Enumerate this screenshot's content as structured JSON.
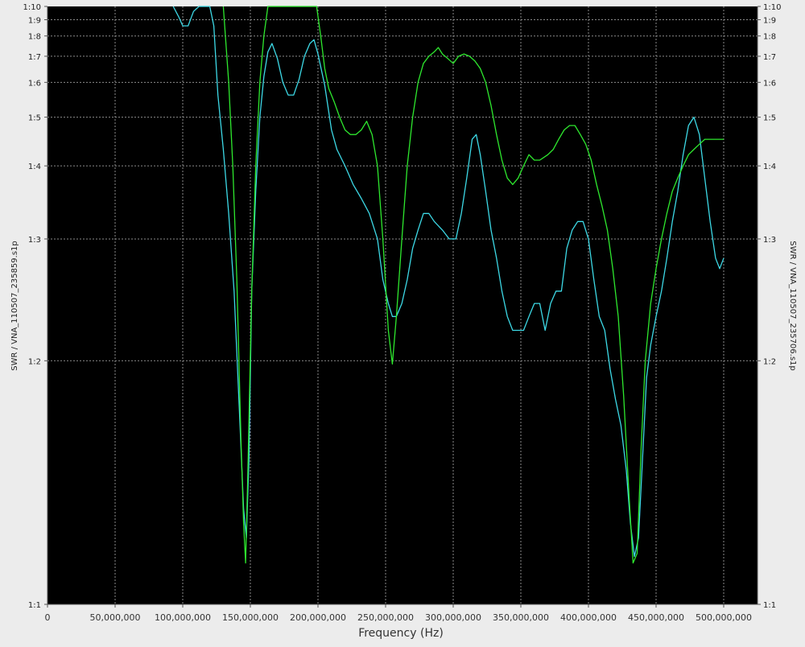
{
  "chart_data": {
    "type": "line",
    "xlabel": "Frequency (Hz)",
    "ylabel_left": "SWR / VNA_110507_235859.s1p",
    "ylabel_right": "SWR / VNA_110507_235706.s1p",
    "xlim": [
      0,
      525000000
    ],
    "ylim": [
      1.0,
      10.0
    ],
    "y_scale": "swr-reflection",
    "x_ticks": [
      {
        "value": 0,
        "label": "0"
      },
      {
        "value": 50000000,
        "label": "50,000,000"
      },
      {
        "value": 100000000,
        "label": "100,000,000"
      },
      {
        "value": 150000000,
        "label": "150,000,000"
      },
      {
        "value": 200000000,
        "label": "200,000,000"
      },
      {
        "value": 250000000,
        "label": "250,000,000"
      },
      {
        "value": 300000000,
        "label": "300,000,000"
      },
      {
        "value": 350000000,
        "label": "350,000,000"
      },
      {
        "value": 400000000,
        "label": "400,000,000"
      },
      {
        "value": 450000000,
        "label": "450,000,000"
      },
      {
        "value": 500000000,
        "label": "500,000,000"
      }
    ],
    "y_ticks": [
      {
        "value": 10,
        "label": "1:10"
      },
      {
        "value": 9,
        "label": "1:9"
      },
      {
        "value": 8,
        "label": "1:8"
      },
      {
        "value": 7,
        "label": "1:7"
      },
      {
        "value": 6,
        "label": "1:6"
      },
      {
        "value": 5,
        "label": "1:5"
      },
      {
        "value": 4,
        "label": "1:4"
      },
      {
        "value": 3,
        "label": "1:3"
      },
      {
        "value": 2,
        "label": "1:2"
      },
      {
        "value": 1,
        "label": "1:1"
      }
    ],
    "grid": true,
    "background": "#000000",
    "series": [
      {
        "color": "#3dd9e6",
        "points": [
          [
            93000000,
            10.0
          ],
          [
            97000000,
            9.2
          ],
          [
            100000000,
            8.6
          ],
          [
            104000000,
            8.6
          ],
          [
            108000000,
            9.6
          ],
          [
            112000000,
            10.0
          ],
          [
            116000000,
            10.0
          ],
          [
            120000000,
            10.0
          ],
          [
            123000000,
            8.6
          ],
          [
            126000000,
            5.6
          ],
          [
            130000000,
            4.3
          ],
          [
            134000000,
            3.3
          ],
          [
            138000000,
            2.5
          ],
          [
            142000000,
            1.7
          ],
          [
            145000000,
            1.3
          ],
          [
            147000000,
            1.2
          ],
          [
            149000000,
            1.5
          ],
          [
            151000000,
            2.5
          ],
          [
            154000000,
            3.6
          ],
          [
            157000000,
            5.0
          ],
          [
            160000000,
            6.2
          ],
          [
            163000000,
            7.2
          ],
          [
            166000000,
            7.6
          ],
          [
            170000000,
            6.9
          ],
          [
            174000000,
            6.0
          ],
          [
            178000000,
            5.6
          ],
          [
            182000000,
            5.6
          ],
          [
            186000000,
            6.1
          ],
          [
            190000000,
            7.0
          ],
          [
            194000000,
            7.6
          ],
          [
            197000000,
            7.8
          ],
          [
            200000000,
            7.1
          ],
          [
            205000000,
            5.9
          ],
          [
            210000000,
            4.7
          ],
          [
            214000000,
            4.3
          ],
          [
            220000000,
            4.0
          ],
          [
            226000000,
            3.7
          ],
          [
            232000000,
            3.5
          ],
          [
            238000000,
            3.3
          ],
          [
            244000000,
            3.0
          ],
          [
            248000000,
            2.6
          ],
          [
            252000000,
            2.4
          ],
          [
            255000000,
            2.3
          ],
          [
            258000000,
            2.3
          ],
          [
            262000000,
            2.4
          ],
          [
            266000000,
            2.6
          ],
          [
            270000000,
            2.9
          ],
          [
            274000000,
            3.1
          ],
          [
            278000000,
            3.3
          ],
          [
            282000000,
            3.3
          ],
          [
            286000000,
            3.2
          ],
          [
            292000000,
            3.1
          ],
          [
            297000000,
            3.0
          ],
          [
            302000000,
            3.0
          ],
          [
            306000000,
            3.3
          ],
          [
            310000000,
            3.8
          ],
          [
            314000000,
            4.5
          ],
          [
            317000000,
            4.6
          ],
          [
            320000000,
            4.2
          ],
          [
            324000000,
            3.6
          ],
          [
            328000000,
            3.1
          ],
          [
            332000000,
            2.8
          ],
          [
            336000000,
            2.5
          ],
          [
            340000000,
            2.3
          ],
          [
            344000000,
            2.2
          ],
          [
            348000000,
            2.2
          ],
          [
            352000000,
            2.2
          ],
          [
            356000000,
            2.3
          ],
          [
            360000000,
            2.4
          ],
          [
            364000000,
            2.4
          ],
          [
            368000000,
            2.2
          ],
          [
            372000000,
            2.4
          ],
          [
            376000000,
            2.5
          ],
          [
            380000000,
            2.5
          ],
          [
            384000000,
            2.9
          ],
          [
            388000000,
            3.1
          ],
          [
            392000000,
            3.2
          ],
          [
            396000000,
            3.2
          ],
          [
            400000000,
            3.0
          ],
          [
            404000000,
            2.6
          ],
          [
            408000000,
            2.3
          ],
          [
            412000000,
            2.2
          ],
          [
            416000000,
            1.95
          ],
          [
            420000000,
            1.78
          ],
          [
            424000000,
            1.65
          ],
          [
            428000000,
            1.45
          ],
          [
            431000000,
            1.25
          ],
          [
            434000000,
            1.14
          ],
          [
            437000000,
            1.2
          ],
          [
            440000000,
            1.5
          ],
          [
            443000000,
            1.9
          ],
          [
            446000000,
            2.1
          ],
          [
            450000000,
            2.3
          ],
          [
            454000000,
            2.5
          ],
          [
            458000000,
            2.8
          ],
          [
            462000000,
            3.2
          ],
          [
            466000000,
            3.6
          ],
          [
            470000000,
            4.2
          ],
          [
            474000000,
            4.8
          ],
          [
            478000000,
            5.0
          ],
          [
            482000000,
            4.6
          ],
          [
            486000000,
            3.8
          ],
          [
            490000000,
            3.2
          ],
          [
            494000000,
            2.8
          ],
          [
            497000000,
            2.7
          ],
          [
            500000000,
            2.8
          ]
        ]
      },
      {
        "color": "#2ee82e",
        "points": [
          [
            130000000,
            10.0
          ],
          [
            134000000,
            6.0
          ],
          [
            137000000,
            4.0
          ],
          [
            140000000,
            2.6
          ],
          [
            143000000,
            1.6
          ],
          [
            145000000,
            1.25
          ],
          [
            146500000,
            1.12
          ],
          [
            148000000,
            1.4
          ],
          [
            151000000,
            2.5
          ],
          [
            154000000,
            4.0
          ],
          [
            157000000,
            6.0
          ],
          [
            160000000,
            8.0
          ],
          [
            163000000,
            10.0
          ],
          [
            199000000,
            10.0
          ],
          [
            202000000,
            8.0
          ],
          [
            205000000,
            6.5
          ],
          [
            208000000,
            5.8
          ],
          [
            212000000,
            5.4
          ],
          [
            216000000,
            5.0
          ],
          [
            220000000,
            4.7
          ],
          [
            224000000,
            4.6
          ],
          [
            228000000,
            4.6
          ],
          [
            232000000,
            4.7
          ],
          [
            236000000,
            4.9
          ],
          [
            240000000,
            4.6
          ],
          [
            244000000,
            4.0
          ],
          [
            248000000,
            3.0
          ],
          [
            252000000,
            2.2
          ],
          [
            255000000,
            1.98
          ],
          [
            258000000,
            2.3
          ],
          [
            262000000,
            3.0
          ],
          [
            266000000,
            4.0
          ],
          [
            270000000,
            5.0
          ],
          [
            274000000,
            6.0
          ],
          [
            278000000,
            6.7
          ],
          [
            282000000,
            7.0
          ],
          [
            286000000,
            7.2
          ],
          [
            289000000,
            7.4
          ],
          [
            292000000,
            7.1
          ],
          [
            296000000,
            6.9
          ],
          [
            300000000,
            6.7
          ],
          [
            304000000,
            7.0
          ],
          [
            308000000,
            7.1
          ],
          [
            312000000,
            7.0
          ],
          [
            316000000,
            6.8
          ],
          [
            320000000,
            6.5
          ],
          [
            324000000,
            6.0
          ],
          [
            328000000,
            5.3
          ],
          [
            332000000,
            4.6
          ],
          [
            336000000,
            4.1
          ],
          [
            340000000,
            3.8
          ],
          [
            344000000,
            3.7
          ],
          [
            348000000,
            3.8
          ],
          [
            352000000,
            4.0
          ],
          [
            356000000,
            4.2
          ],
          [
            360000000,
            4.1
          ],
          [
            364000000,
            4.1
          ],
          [
            370000000,
            4.2
          ],
          [
            374000000,
            4.3
          ],
          [
            378000000,
            4.5
          ],
          [
            382000000,
            4.7
          ],
          [
            386000000,
            4.8
          ],
          [
            390000000,
            4.8
          ],
          [
            394000000,
            4.6
          ],
          [
            398000000,
            4.4
          ],
          [
            402000000,
            4.1
          ],
          [
            406000000,
            3.7
          ],
          [
            410000000,
            3.4
          ],
          [
            414000000,
            3.1
          ],
          [
            418000000,
            2.7
          ],
          [
            422000000,
            2.3
          ],
          [
            426000000,
            1.8
          ],
          [
            430000000,
            1.35
          ],
          [
            433000000,
            1.12
          ],
          [
            436000000,
            1.15
          ],
          [
            439000000,
            1.55
          ],
          [
            442000000,
            2.0
          ],
          [
            446000000,
            2.4
          ],
          [
            450000000,
            2.7
          ],
          [
            454000000,
            3.0
          ],
          [
            458000000,
            3.3
          ],
          [
            462000000,
            3.6
          ],
          [
            466000000,
            3.8
          ],
          [
            470000000,
            4.0
          ],
          [
            474000000,
            4.2
          ],
          [
            478000000,
            4.3
          ],
          [
            482000000,
            4.4
          ],
          [
            486000000,
            4.5
          ],
          [
            490000000,
            4.5
          ],
          [
            494000000,
            4.5
          ],
          [
            500000000,
            4.5
          ]
        ]
      }
    ]
  }
}
